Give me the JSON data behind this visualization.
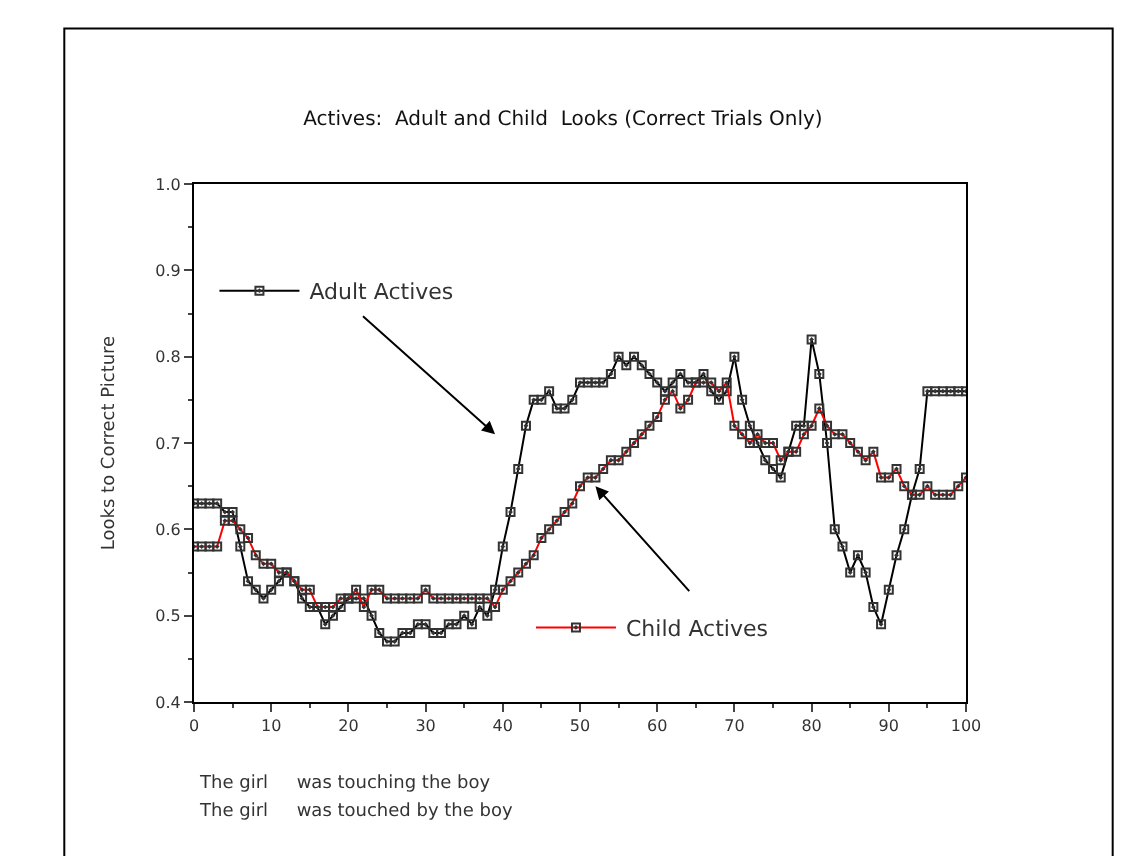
{
  "chart_data": {
    "type": "line",
    "title": "Actives:  Adult and Child  Looks (Correct Trials Only)",
    "ylabel": "Looks to Correct Picture",
    "x": [
      0,
      1,
      2,
      3,
      4,
      5,
      6,
      7,
      8,
      9,
      10,
      11,
      12,
      13,
      14,
      15,
      16,
      17,
      18,
      19,
      20,
      21,
      22,
      23,
      24,
      25,
      26,
      27,
      28,
      29,
      30,
      31,
      32,
      33,
      34,
      35,
      36,
      37,
      38,
      39,
      40,
      41,
      42,
      43,
      44,
      45,
      46,
      47,
      48,
      49,
      50,
      51,
      52,
      53,
      54,
      55,
      56,
      57,
      58,
      59,
      60,
      61,
      62,
      63,
      64,
      65,
      66,
      67,
      68,
      69,
      70,
      71,
      72,
      73,
      74,
      75,
      76,
      77,
      78,
      79,
      80,
      81,
      82,
      83,
      84,
      85,
      86,
      87,
      88,
      89,
      90,
      91,
      92,
      93,
      94,
      95,
      96,
      97,
      98,
      99,
      100
    ],
    "series": [
      {
        "name": "Adult Actives",
        "color": "#000000",
        "values": [
          0.63,
          0.63,
          0.63,
          0.63,
          0.62,
          0.62,
          0.58,
          0.54,
          0.53,
          0.52,
          0.53,
          0.54,
          0.55,
          0.54,
          0.52,
          0.51,
          0.51,
          0.49,
          0.5,
          0.51,
          0.52,
          0.52,
          0.52,
          0.5,
          0.48,
          0.47,
          0.47,
          0.48,
          0.48,
          0.49,
          0.49,
          0.48,
          0.48,
          0.49,
          0.49,
          0.5,
          0.49,
          0.51,
          0.5,
          0.53,
          0.58,
          0.62,
          0.67,
          0.72,
          0.75,
          0.75,
          0.76,
          0.74,
          0.74,
          0.75,
          0.77,
          0.77,
          0.77,
          0.77,
          0.78,
          0.8,
          0.79,
          0.8,
          0.79,
          0.78,
          0.77,
          0.76,
          0.77,
          0.78,
          0.77,
          0.77,
          0.78,
          0.76,
          0.75,
          0.76,
          0.8,
          0.75,
          0.72,
          0.7,
          0.68,
          0.67,
          0.66,
          0.69,
          0.72,
          0.72,
          0.82,
          0.78,
          0.7,
          0.6,
          0.58,
          0.55,
          0.57,
          0.55,
          0.51,
          0.49,
          0.53,
          0.57,
          0.6,
          0.64,
          0.67,
          0.76,
          0.76,
          0.76,
          0.76,
          0.76,
          0.76
        ]
      },
      {
        "name": "Child Actives",
        "color": "#ff0000",
        "values": [
          0.58,
          0.58,
          0.58,
          0.58,
          0.61,
          0.61,
          0.6,
          0.59,
          0.57,
          0.56,
          0.56,
          0.55,
          0.55,
          0.54,
          0.53,
          0.53,
          0.51,
          0.51,
          0.51,
          0.52,
          0.52,
          0.53,
          0.51,
          0.53,
          0.53,
          0.52,
          0.52,
          0.52,
          0.52,
          0.52,
          0.53,
          0.52,
          0.52,
          0.52,
          0.52,
          0.52,
          0.52,
          0.52,
          0.52,
          0.51,
          0.53,
          0.54,
          0.55,
          0.56,
          0.57,
          0.59,
          0.6,
          0.61,
          0.62,
          0.63,
          0.65,
          0.66,
          0.66,
          0.67,
          0.68,
          0.68,
          0.69,
          0.7,
          0.71,
          0.72,
          0.73,
          0.75,
          0.76,
          0.74,
          0.75,
          0.77,
          0.77,
          0.77,
          0.76,
          0.77,
          0.72,
          0.71,
          0.7,
          0.71,
          0.7,
          0.7,
          0.68,
          0.69,
          0.69,
          0.71,
          0.72,
          0.74,
          0.72,
          0.71,
          0.71,
          0.7,
          0.69,
          0.68,
          0.69,
          0.66,
          0.66,
          0.67,
          0.65,
          0.64,
          0.64,
          0.65,
          0.64,
          0.64,
          0.64,
          0.65,
          0.66
        ]
      }
    ],
    "xlim": [
      0,
      100
    ],
    "xticks": [
      0,
      10,
      20,
      30,
      40,
      50,
      60,
      70,
      80,
      90,
      100
    ],
    "ylim": [
      0.4,
      1.0
    ],
    "yticks": [
      {
        "value": 0.4,
        "label": "0.4"
      },
      {
        "value": 0.5,
        "label": "0.5"
      },
      {
        "value": 0.6,
        "label": "0.6"
      },
      {
        "value": 0.7,
        "label": "0.7"
      },
      {
        "value": 0.8,
        "label": "0.8"
      },
      {
        "value": 0.9,
        "label": "0.9"
      },
      {
        "value": 1.0,
        "label": "1.0"
      }
    ],
    "annotations": [
      "The girl     was touching the boy",
      "The girl     was touched by the boy"
    ],
    "marker": "square",
    "line_style": "solid",
    "legend": "left"
  }
}
